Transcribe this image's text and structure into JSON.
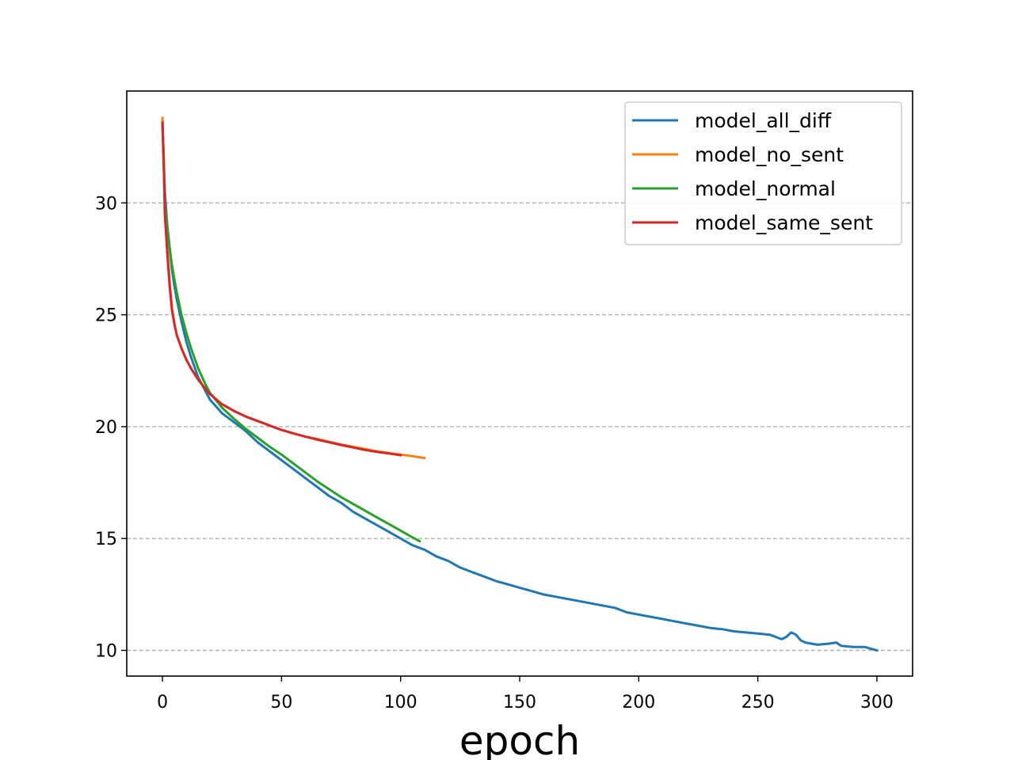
{
  "chart_data": {
    "type": "line",
    "title": "",
    "xlabel": "epoch",
    "ylabel": "",
    "xlim": [
      -15,
      315
    ],
    "ylim": [
      8.85,
      35.0
    ],
    "xticks": [
      0,
      50,
      100,
      150,
      200,
      250,
      300
    ],
    "yticks": [
      10,
      15,
      20,
      25,
      30
    ],
    "grid": "y-dashed",
    "legend": "top-right",
    "series": [
      {
        "name": "model_all_diff",
        "color": "#1f77b4",
        "x": [
          0,
          1,
          2,
          3,
          4,
          5,
          6,
          8,
          10,
          12,
          15,
          18,
          20,
          25,
          30,
          35,
          40,
          45,
          50,
          55,
          60,
          65,
          70,
          75,
          80,
          85,
          90,
          95,
          100,
          105,
          110,
          115,
          120,
          125,
          130,
          135,
          140,
          145,
          150,
          155,
          160,
          165,
          170,
          175,
          180,
          185,
          190,
          195,
          200,
          205,
          210,
          215,
          220,
          225,
          230,
          235,
          240,
          245,
          250,
          255,
          260,
          262,
          264,
          266,
          268,
          270,
          275,
          280,
          283,
          285,
          290,
          295,
          300
        ],
        "y": [
          33.5,
          30.5,
          29.0,
          28.0,
          27.0,
          26.3,
          25.7,
          24.7,
          23.8,
          23.1,
          22.2,
          21.6,
          21.2,
          20.6,
          20.2,
          19.8,
          19.3,
          18.9,
          18.5,
          18.1,
          17.7,
          17.3,
          16.9,
          16.6,
          16.2,
          15.9,
          15.6,
          15.3,
          15.0,
          14.7,
          14.5,
          14.2,
          14.0,
          13.7,
          13.5,
          13.3,
          13.1,
          12.95,
          12.8,
          12.65,
          12.5,
          12.4,
          12.3,
          12.2,
          12.1,
          12.0,
          11.9,
          11.7,
          11.6,
          11.5,
          11.4,
          11.3,
          11.2,
          11.1,
          11.0,
          10.95,
          10.85,
          10.8,
          10.75,
          10.7,
          10.5,
          10.6,
          10.8,
          10.7,
          10.45,
          10.35,
          10.25,
          10.3,
          10.35,
          10.2,
          10.15,
          10.15,
          10.0
        ]
      },
      {
        "name": "model_no_sent",
        "color": "#ff7f0e",
        "x": [
          0,
          0.5,
          1,
          2,
          3,
          4,
          5,
          6,
          8,
          10,
          12,
          15,
          18,
          20,
          25,
          30,
          35,
          40,
          45,
          50,
          55,
          60,
          65,
          70,
          75,
          80,
          85,
          90,
          95,
          100,
          105,
          110
        ],
        "y": [
          33.8,
          32.0,
          29.6,
          28.0,
          26.5,
          25.3,
          24.6,
          24.1,
          23.5,
          23.0,
          22.6,
          22.1,
          21.7,
          21.45,
          21.0,
          20.7,
          20.45,
          20.25,
          20.05,
          19.85,
          19.7,
          19.55,
          19.45,
          19.32,
          19.2,
          19.1,
          19.0,
          18.9,
          18.82,
          18.75,
          18.68,
          18.6
        ]
      },
      {
        "name": "model_normal",
        "color": "#2ca02c",
        "x": [
          0,
          1,
          2,
          3,
          4,
          5,
          6,
          8,
          10,
          12,
          15,
          18,
          20,
          25,
          30,
          35,
          40,
          45,
          50,
          55,
          60,
          65,
          70,
          75,
          80,
          85,
          90,
          95,
          100,
          105,
          108
        ],
        "y": [
          33.5,
          30.0,
          29.0,
          28.0,
          27.2,
          26.6,
          26.0,
          25.0,
          24.2,
          23.5,
          22.6,
          21.9,
          21.5,
          20.85,
          20.35,
          19.9,
          19.5,
          19.1,
          18.75,
          18.35,
          17.95,
          17.55,
          17.2,
          16.85,
          16.55,
          16.25,
          15.95,
          15.65,
          15.35,
          15.05,
          14.88
        ]
      },
      {
        "name": "model_same_sent",
        "color": "#d62728",
        "x": [
          0,
          0.5,
          1,
          2,
          3,
          4,
          5,
          6,
          8,
          10,
          12,
          15,
          18,
          20,
          25,
          30,
          35,
          40,
          45,
          50,
          55,
          60,
          65,
          70,
          75,
          80,
          85,
          90,
          95,
          100
        ],
        "y": [
          33.6,
          32.0,
          29.5,
          27.8,
          26.3,
          25.2,
          24.6,
          24.1,
          23.5,
          23.0,
          22.6,
          22.1,
          21.7,
          21.45,
          21.0,
          20.7,
          20.45,
          20.25,
          20.05,
          19.85,
          19.7,
          19.55,
          19.42,
          19.3,
          19.18,
          19.07,
          18.96,
          18.87,
          18.8,
          18.72
        ]
      }
    ]
  }
}
